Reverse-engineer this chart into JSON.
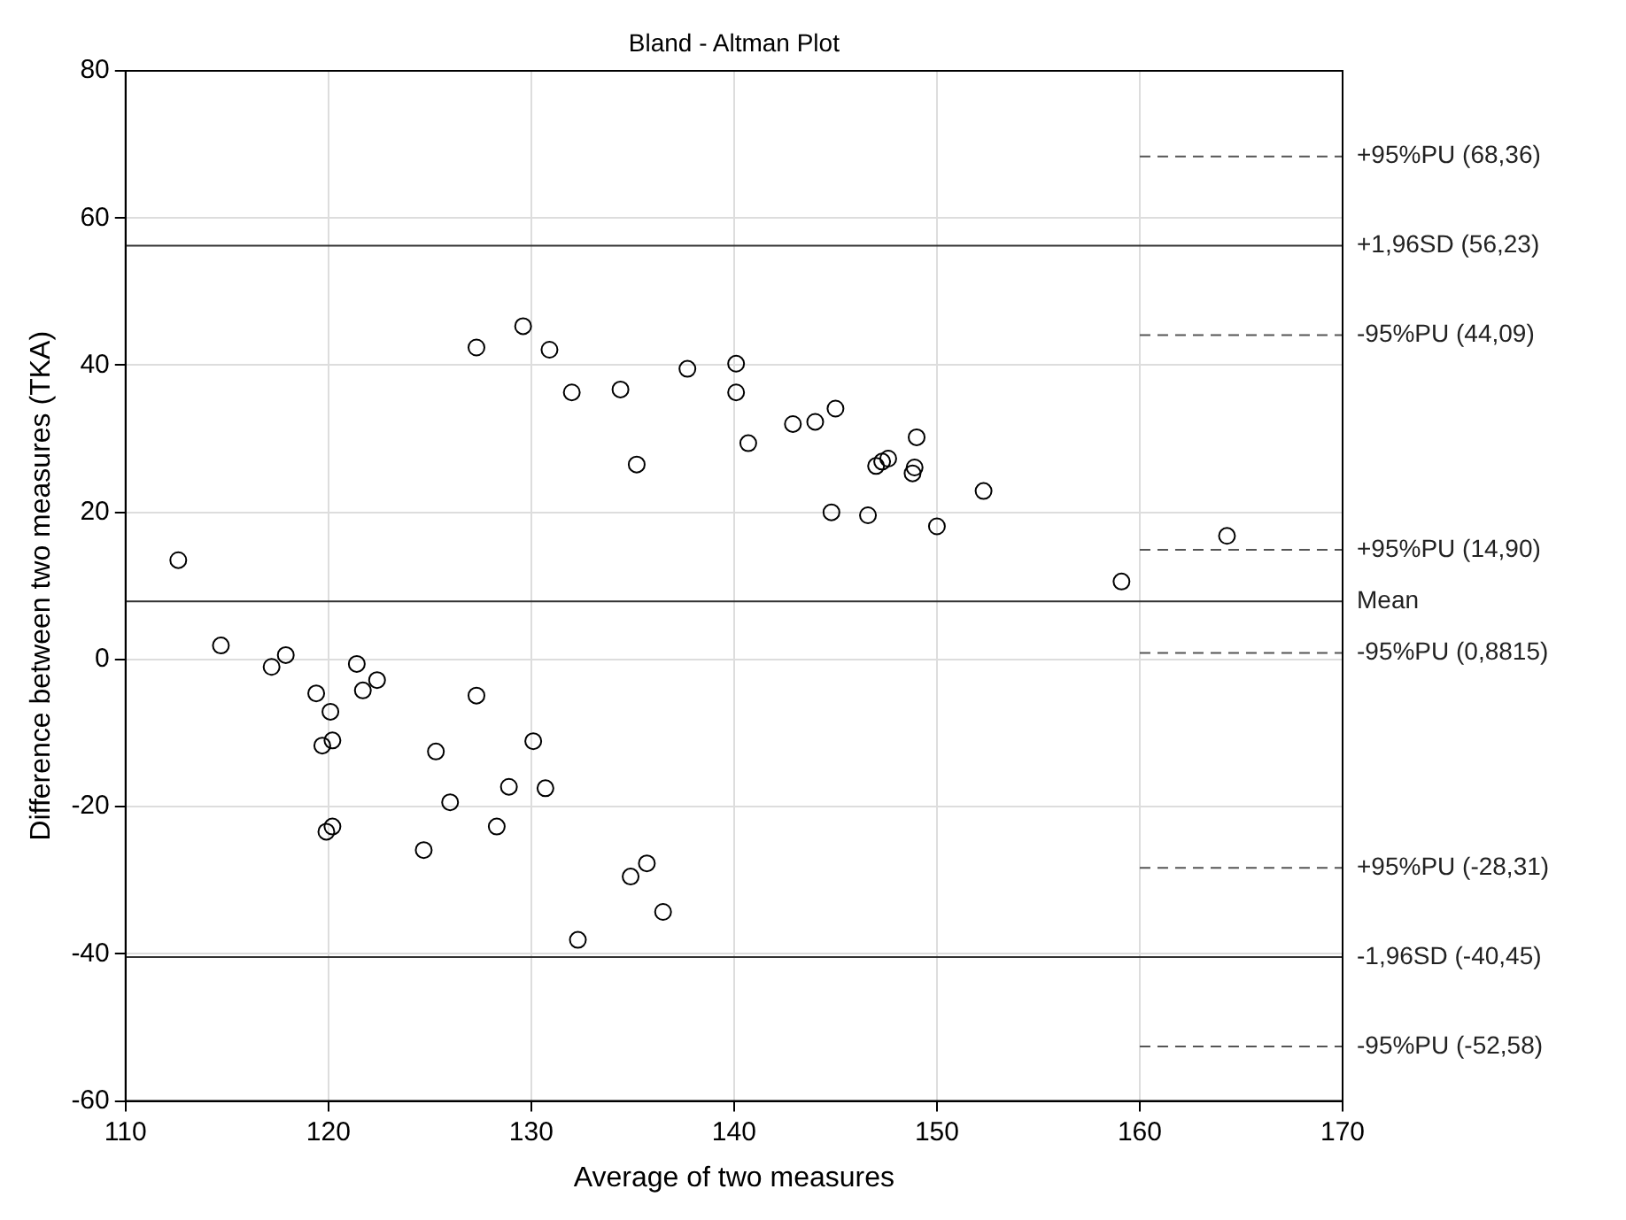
{
  "chart_data": {
    "type": "scatter",
    "title": "Bland - Altman Plot",
    "xlabel": "Average of two measures",
    "ylabel": "Difference between two measures (TKA)",
    "xlim": [
      110,
      170
    ],
    "xticks": [
      110,
      120,
      130,
      140,
      150,
      160,
      170
    ],
    "ylim": [
      -60,
      80
    ],
    "yticks": [
      -60,
      -40,
      -20,
      0,
      20,
      40,
      60,
      80
    ],
    "grid": true,
    "series": [
      {
        "marker": "circle",
        "color": "#000000",
        "x": [
          112.6,
          114.7,
          117.2,
          117.9,
          121.4,
          119.4,
          121.7,
          122.4,
          127.3,
          127.3,
          129.6,
          130.9,
          132.0,
          134.4,
          135.2,
          137.7,
          140.1,
          140.1,
          140.7,
          142.9,
          144.0,
          145.0,
          149.0,
          147.0,
          147.3,
          147.6,
          148.8,
          148.9,
          144.8,
          146.6,
          150.0,
          152.3,
          159.1,
          164.3,
          120.1,
          119.7,
          120.2,
          125.3,
          130.1,
          126.0,
          128.9,
          130.7,
          128.3,
          119.9,
          120.2,
          124.7,
          134.9,
          135.7,
          136.5,
          132.3
        ],
        "values": [
          13.5,
          1.9,
          -1.0,
          0.6,
          -0.6,
          -4.6,
          -4.2,
          -2.8,
          -4.9,
          42.4,
          45.3,
          42.1,
          36.3,
          36.7,
          26.5,
          39.5,
          40.2,
          36.3,
          29.4,
          32.0,
          32.3,
          34.1,
          30.2,
          26.3,
          26.9,
          27.3,
          25.3,
          26.1,
          20.0,
          19.6,
          18.1,
          22.9,
          10.6,
          16.8,
          -7.1,
          -11.7,
          -11.0,
          -12.5,
          -11.1,
          -19.4,
          -17.3,
          -17.5,
          -22.7,
          -23.4,
          -22.7,
          -25.9,
          -29.5,
          -27.7,
          -34.3,
          -38.1
        ]
      },
      {
        "type": "line",
        "name": "+95%PU (68,36)",
        "marker": "none",
        "color": "#555555",
        "line_style": "dashed",
        "x": [
          160,
          170
        ],
        "values": [
          68.36,
          68.36
        ]
      },
      {
        "type": "line",
        "name": "-95%PU (44,09)",
        "marker": "none",
        "color": "#555555",
        "line_style": "dashed",
        "x": [
          160,
          170
        ],
        "values": [
          44.09,
          44.09
        ]
      },
      {
        "type": "line",
        "name": "+95%PU (14,90)",
        "marker": "none",
        "color": "#555555",
        "line_style": "dashed",
        "x": [
          160,
          170
        ],
        "values": [
          14.9,
          14.9
        ]
      },
      {
        "type": "line",
        "name": "-95%PU (0,8815)",
        "marker": "none",
        "color": "#555555",
        "line_style": "dashed",
        "x": [
          160,
          170
        ],
        "values": [
          0.8815,
          0.8815
        ]
      },
      {
        "type": "line",
        "name": "+95%PU (-28,31)",
        "marker": "none",
        "color": "#555555",
        "line_style": "dashed",
        "x": [
          160,
          170
        ],
        "values": [
          -28.31,
          -28.31
        ]
      },
      {
        "type": "line",
        "name": "-95%PU (-52,58)",
        "marker": "none",
        "color": "#555555",
        "line_style": "dashed",
        "x": [
          160,
          170
        ],
        "values": [
          -52.58,
          -52.58
        ]
      }
    ],
    "ref_lines": [
      {
        "axis": "y",
        "value": 56.23,
        "label": "+1,96SD (56,23)",
        "color": "#333333"
      },
      {
        "axis": "y",
        "value": 7.89,
        "label": "Mean",
        "color": "#333333"
      },
      {
        "axis": "y",
        "value": -40.45,
        "label": "-1,96SD (-40,45)",
        "color": "#333333"
      }
    ]
  }
}
